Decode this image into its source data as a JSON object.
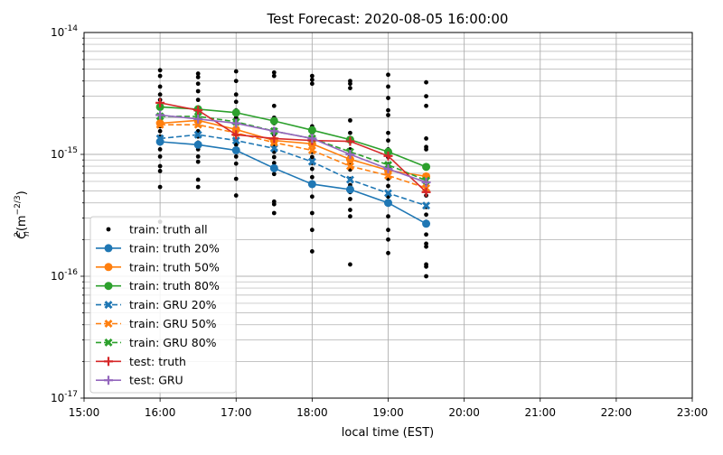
{
  "chart_data": {
    "type": "line",
    "title": "Test Forecast: 2020-08-05 16:00:00",
    "xlabel": "local time (EST)",
    "ylabel": "C_n^2(m^-2/3)",
    "yscale": "log",
    "ylim": [
      1e-17,
      1e-14
    ],
    "xlim": [
      "15:00",
      "23:00"
    ],
    "xticks": [
      "15:00",
      "16:00",
      "17:00",
      "18:00",
      "19:00",
      "20:00",
      "21:00",
      "22:00",
      "23:00"
    ],
    "yticks": [
      "10^-17",
      "10^-16",
      "10^-15",
      "10^-14"
    ],
    "grid": true,
    "legend_position": "lower-left",
    "x": [
      "16:00",
      "16:30",
      "17:00",
      "17:30",
      "18:00",
      "18:30",
      "19:00",
      "19:30"
    ],
    "truth_all": [
      {
        "x": "16:00",
        "values": [
          4.9e-15,
          4.4e-15,
          3.6e-15,
          3.1e-15,
          2.8e-15,
          2.4e-15,
          2.1e-15,
          1.9e-15,
          1.7e-15,
          1.55e-15,
          1.4e-15,
          1.25e-15,
          1.1e-15,
          9.6e-16,
          8e-16,
          7.3e-16,
          5.4e-16,
          2.8e-16
        ]
      },
      {
        "x": "16:30",
        "values": [
          4.6e-15,
          4.3e-15,
          3.8e-15,
          3.3e-15,
          2.8e-15,
          2.4e-15,
          2.1e-15,
          1.9e-15,
          1.75e-15,
          1.55e-15,
          1.4e-15,
          1.25e-15,
          1.1e-15,
          9.6e-16,
          8.7e-16,
          6.2e-16,
          5.4e-16
        ]
      },
      {
        "x": "17:00",
        "values": [
          4.8e-15,
          4e-15,
          3.1e-15,
          2.7e-15,
          2.3e-15,
          2e-15,
          1.8e-15,
          1.6e-15,
          1.45e-15,
          1.3e-15,
          1.2e-15,
          1.05e-15,
          9.6e-16,
          8.4e-16,
          6.3e-16,
          4.6e-16
        ]
      },
      {
        "x": "17:30",
        "values": [
          4.7e-15,
          4.4e-15,
          2.5e-15,
          2e-15,
          1.8e-15,
          1.6e-15,
          1.45e-15,
          1.3e-15,
          1.2e-15,
          1.05e-15,
          9.5e-16,
          8.5e-16,
          7.6e-16,
          6.9e-16,
          4.1e-16,
          3.9e-16,
          3.3e-16
        ]
      },
      {
        "x": "18:00",
        "values": [
          4.4e-15,
          4.1e-15,
          3.8e-15,
          1.7e-15,
          1.5e-15,
          1.35e-15,
          1.2e-15,
          1.05e-15,
          9.5e-16,
          8.5e-16,
          7.6e-16,
          6.5e-16,
          5.6e-16,
          4.5e-16,
          3.3e-16,
          2.4e-16,
          1.6e-16
        ]
      },
      {
        "x": "18:30",
        "values": [
          4e-15,
          3.8e-15,
          3.5e-15,
          1.9e-15,
          1.5e-15,
          1.3e-15,
          1.1e-15,
          9.8e-16,
          8.5e-16,
          7.5e-16,
          6.3e-16,
          5.6e-16,
          4.9e-16,
          4.3e-16,
          3.5e-16,
          3.1e-16,
          1.25e-16
        ]
      },
      {
        "x": "19:00",
        "values": [
          4.5e-15,
          3.6e-15,
          2.9e-15,
          2.3e-15,
          2.1e-15,
          1.5e-15,
          1.3e-15,
          1.1e-15,
          9.5e-16,
          8.3e-16,
          7.3e-16,
          6.3e-16,
          5.5e-16,
          4.5e-16,
          4e-16,
          3.1e-16,
          2.4e-16,
          2e-16,
          1.55e-16
        ]
      },
      {
        "x": "19:30",
        "values": [
          3.9e-15,
          3e-15,
          2.5e-15,
          1.35e-15,
          1.15e-15,
          1.1e-15,
          8e-16,
          6.5e-16,
          5.5e-16,
          4.6e-16,
          3.7e-16,
          3.2e-16,
          2.8e-16,
          2.2e-16,
          1.85e-16,
          1.75e-16,
          1.25e-16,
          1.2e-16,
          1e-16
        ]
      }
    ],
    "series": [
      {
        "name": "train: truth all",
        "color": "#000000",
        "style": "points",
        "marker": "dot"
      },
      {
        "name": "train: truth 20%",
        "color": "#1f77b4",
        "style": "solid",
        "marker": "circle",
        "values": [
          1.27e-15,
          1.2e-15,
          1.08e-15,
          7.7e-16,
          5.7e-16,
          5.15e-16,
          4e-16,
          2.7e-16
        ]
      },
      {
        "name": "train: truth 50%",
        "color": "#ff7f0e",
        "style": "solid",
        "marker": "circle",
        "values": [
          1.8e-15,
          1.9e-15,
          1.6e-15,
          1.3e-15,
          1.22e-15,
          9.1e-16,
          7.4e-16,
          6.6e-16
        ]
      },
      {
        "name": "train: truth 80%",
        "color": "#2ca02c",
        "style": "solid",
        "marker": "circle",
        "values": [
          2.45e-15,
          2.35e-15,
          2.2e-15,
          1.88e-15,
          1.58e-15,
          1.32e-15,
          1.05e-15,
          7.9e-16
        ]
      },
      {
        "name": "train: GRU 20%",
        "color": "#1f77b4",
        "style": "dashed",
        "marker": "x",
        "values": [
          1.35e-15,
          1.45e-15,
          1.3e-15,
          1.12e-15,
          8.7e-16,
          6.2e-16,
          4.8e-16,
          3.8e-16
        ]
      },
      {
        "name": "train: GRU 50%",
        "color": "#ff7f0e",
        "style": "dashed",
        "marker": "x",
        "values": [
          1.75e-15,
          1.75e-15,
          1.5e-15,
          1.25e-15,
          1.08e-15,
          8e-16,
          6.7e-16,
          5.3e-16
        ]
      },
      {
        "name": "train: GRU 80%",
        "color": "#2ca02c",
        "style": "dashed",
        "marker": "x",
        "values": [
          2.05e-15,
          2.05e-15,
          1.85e-15,
          1.55e-15,
          1.35e-15,
          1.05e-15,
          8.2e-16,
          6.1e-16
        ]
      },
      {
        "name": "test: truth",
        "color": "#d62728",
        "style": "solid",
        "marker": "plus",
        "values": [
          2.65e-15,
          2.3e-15,
          1.45e-15,
          1.35e-15,
          1.3e-15,
          1.28e-15,
          9.7e-16,
          4.9e-16
        ]
      },
      {
        "name": "test: GRU",
        "color": "#9467bd",
        "style": "solid",
        "marker": "plus",
        "values": [
          2.1e-15,
          1.95e-15,
          1.8e-15,
          1.55e-15,
          1.35e-15,
          1e-15,
          7.6e-16,
          5.9e-16
        ]
      }
    ]
  }
}
